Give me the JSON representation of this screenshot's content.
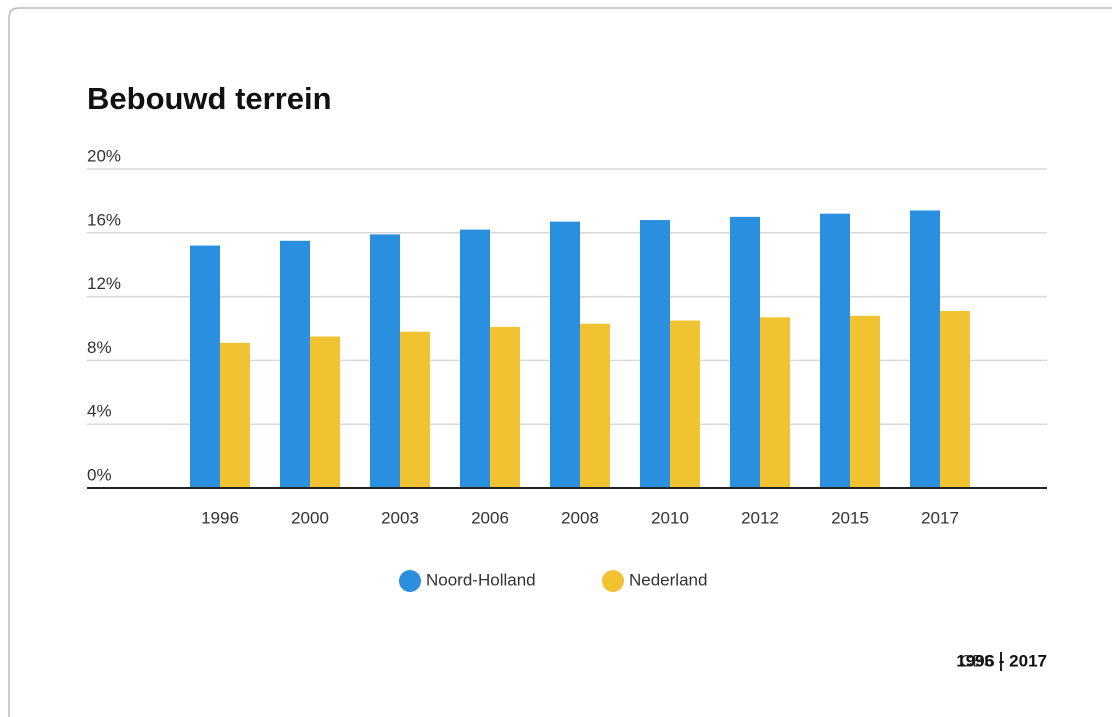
{
  "chart_data": {
    "type": "bar",
    "title": "Bebouwd terrein",
    "categories": [
      "1996",
      "2000",
      "2003",
      "2006",
      "2008",
      "2010",
      "2012",
      "2015",
      "2017"
    ],
    "series": [
      {
        "name": "Noord-Holland",
        "color": "#2b8fe0",
        "values": [
          15.2,
          15.5,
          15.9,
          16.2,
          16.7,
          16.8,
          17.0,
          17.2,
          17.4
        ]
      },
      {
        "name": "Nederland",
        "color": "#f1c232",
        "values": [
          9.1,
          9.5,
          9.8,
          10.1,
          10.3,
          10.5,
          10.7,
          10.8,
          11.1
        ]
      }
    ],
    "ylim": [
      0,
      20
    ],
    "yticks": [
      {
        "value": 0,
        "label": "0%"
      },
      {
        "value": 4,
        "label": "4%"
      },
      {
        "value": 8,
        "label": "8%"
      },
      {
        "value": 12,
        "label": "12%"
      },
      {
        "value": 16,
        "label": "16%"
      },
      {
        "value": 20,
        "label": "20%"
      }
    ],
    "grid": true,
    "source": "CBS",
    "source_period": "1996 - 2017"
  }
}
